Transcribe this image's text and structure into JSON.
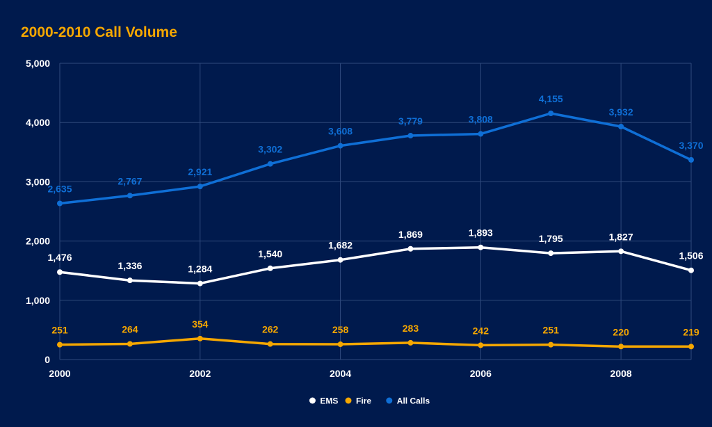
{
  "chart_data": {
    "type": "line",
    "title": "2000-2010 Call Volume",
    "xlabel": "",
    "ylabel": "",
    "x": [
      2000,
      2001,
      2002,
      2003,
      2004,
      2005,
      2006,
      2007,
      2008,
      2009
    ],
    "x_tick_values": [
      2000,
      2002,
      2004,
      2006,
      2008
    ],
    "x_tick_labels": [
      "2000",
      "2002",
      "2004",
      "2006",
      "2008"
    ],
    "xlim": [
      2000,
      2009
    ],
    "ylim": [
      0,
      5000
    ],
    "y_tick_values": [
      0,
      1000,
      2000,
      3000,
      4000,
      5000
    ],
    "y_tick_labels": [
      "0",
      "1,000",
      "2,000",
      "3,000",
      "4,000",
      "5,000"
    ],
    "grid": true,
    "legend_position": "bottom",
    "series": [
      {
        "name": "EMS",
        "color": "#ffffff",
        "values": [
          1476,
          1336,
          1284,
          1540,
          1682,
          1869,
          1893,
          1795,
          1827,
          1506
        ],
        "labels": [
          "1,476",
          "1,336",
          "1,284",
          "1,540",
          "1,682",
          "1,869",
          "1,893",
          "1,795",
          "1,827",
          "1,506"
        ]
      },
      {
        "name": "Fire",
        "color": "#f5a700",
        "values": [
          251,
          264,
          354,
          262,
          258,
          283,
          242,
          251,
          220,
          219
        ],
        "labels": [
          "251",
          "264",
          "354",
          "262",
          "258",
          "283",
          "242",
          "251",
          "220",
          "219"
        ]
      },
      {
        "name": "All Calls",
        "color": "#0f6fd6",
        "values": [
          2635,
          2767,
          2921,
          3302,
          3608,
          3779,
          3808,
          4155,
          3932,
          3370
        ],
        "labels": [
          "2,635",
          "2,767",
          "2,921",
          "3,302",
          "3,608",
          "3,779",
          "3,808",
          "4,155",
          "3,932",
          "3,370"
        ]
      }
    ]
  },
  "colors": {
    "background": "#001a4d",
    "title": "#f5a700",
    "grid": "#2f4a7d",
    "text": "#ffffff"
  }
}
